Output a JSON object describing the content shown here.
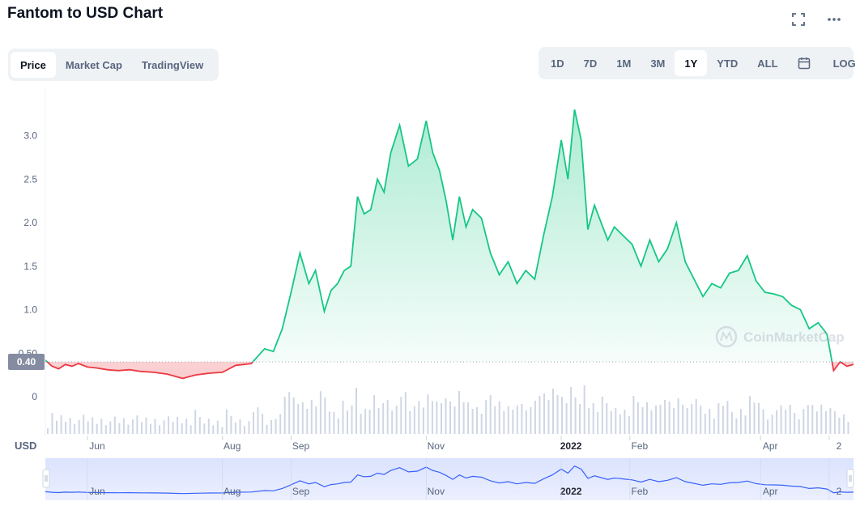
{
  "title": "Fantom to USD Chart",
  "icons": {
    "fullscreen": "fullscreen-icon",
    "more": "more-icon",
    "calendar": "calendar-icon"
  },
  "tabs": [
    {
      "label": "Price",
      "active": true
    },
    {
      "label": "Market Cap",
      "active": false
    },
    {
      "label": "TradingView",
      "active": false
    }
  ],
  "ranges": [
    {
      "label": "1D",
      "active": false
    },
    {
      "label": "7D",
      "active": false
    },
    {
      "label": "1M",
      "active": false
    },
    {
      "label": "3M",
      "active": false
    },
    {
      "label": "1Y",
      "active": true
    },
    {
      "label": "YTD",
      "active": false
    },
    {
      "label": "ALL",
      "active": false
    }
  ],
  "log_label": "LOG",
  "current_price_label": "0.40",
  "currency_label": "USD",
  "watermark": "CoinMarketCap",
  "colors": {
    "up": "#16c784",
    "down": "#ea3943",
    "navigator": "#3861fb",
    "badge": "#858ca2"
  },
  "chart_data": {
    "type": "line",
    "title": "",
    "xlabel": "",
    "ylabel": "",
    "ylim": [
      0,
      3.3
    ],
    "y_ticks": [
      "0",
      "0.50",
      "1.0",
      "1.5",
      "2.0",
      "2.5",
      "3.0"
    ],
    "x_tick_labels": [
      "Jun",
      "Aug",
      "Sep",
      "Nov",
      "2022",
      "Feb",
      "Apr",
      "2"
    ],
    "reference_price": 0.4,
    "grid": false,
    "series": [
      {
        "name": "",
        "x": [
          "2021-05-13",
          "2021-05-16",
          "2021-05-19",
          "2021-05-22",
          "2021-05-25",
          "2021-05-28",
          "2021-06-01",
          "2021-06-05",
          "2021-06-10",
          "2021-06-15",
          "2021-06-20",
          "2021-06-25",
          "2021-07-01",
          "2021-07-07",
          "2021-07-14",
          "2021-07-20",
          "2021-07-26",
          "2021-08-01",
          "2021-08-07",
          "2021-08-14",
          "2021-08-20",
          "2021-08-24",
          "2021-08-28",
          "2021-09-01",
          "2021-09-05",
          "2021-09-09",
          "2021-09-12",
          "2021-09-16",
          "2021-09-19",
          "2021-09-22",
          "2021-09-25",
          "2021-09-28",
          "2021-10-01",
          "2021-10-04",
          "2021-10-07",
          "2021-10-10",
          "2021-10-13",
          "2021-10-16",
          "2021-10-20",
          "2021-10-24",
          "2021-10-28",
          "2021-11-01",
          "2021-11-04",
          "2021-11-07",
          "2021-11-10",
          "2021-11-13",
          "2021-11-16",
          "2021-11-19",
          "2021-11-22",
          "2021-11-26",
          "2021-11-30",
          "2021-12-04",
          "2021-12-08",
          "2021-12-12",
          "2021-12-16",
          "2021-12-20",
          "2021-12-24",
          "2021-12-28",
          "2022-01-01",
          "2022-01-04",
          "2022-01-07",
          "2022-01-10",
          "2022-01-13",
          "2022-01-16",
          "2022-01-19",
          "2022-01-22",
          "2022-01-25",
          "2022-01-29",
          "2022-02-02",
          "2022-02-06",
          "2022-02-10",
          "2022-02-14",
          "2022-02-18",
          "2022-02-22",
          "2022-02-26",
          "2022-03-02",
          "2022-03-06",
          "2022-03-10",
          "2022-03-14",
          "2022-03-18",
          "2022-03-22",
          "2022-03-26",
          "2022-03-30",
          "2022-04-03",
          "2022-04-07",
          "2022-04-11",
          "2022-04-15",
          "2022-04-19",
          "2022-04-23",
          "2022-04-27",
          "2022-05-01",
          "2022-05-04",
          "2022-05-07",
          "2022-05-10",
          "2022-05-13"
        ],
        "values": [
          0.42,
          0.35,
          0.32,
          0.37,
          0.35,
          0.38,
          0.34,
          0.33,
          0.31,
          0.3,
          0.31,
          0.29,
          0.28,
          0.26,
          0.21,
          0.25,
          0.27,
          0.28,
          0.36,
          0.38,
          0.55,
          0.52,
          0.78,
          1.2,
          1.65,
          1.3,
          1.45,
          0.98,
          1.22,
          1.3,
          1.45,
          1.5,
          2.3,
          2.1,
          2.15,
          2.5,
          2.35,
          2.8,
          3.12,
          2.65,
          2.73,
          3.17,
          2.8,
          2.6,
          2.25,
          1.8,
          2.3,
          1.95,
          2.15,
          2.05,
          1.65,
          1.4,
          1.55,
          1.3,
          1.45,
          1.35,
          1.85,
          2.3,
          2.95,
          2.5,
          3.3,
          2.95,
          1.92,
          2.2,
          2.0,
          1.8,
          1.95,
          1.85,
          1.75,
          1.5,
          1.8,
          1.55,
          1.7,
          2.0,
          1.55,
          1.35,
          1.15,
          1.3,
          1.25,
          1.42,
          1.45,
          1.62,
          1.33,
          1.2,
          1.18,
          1.15,
          1.05,
          1.0,
          0.78,
          0.85,
          0.72,
          0.3,
          0.4,
          0.35,
          0.37
        ]
      }
    ],
    "volume_note": "volume bars shown",
    "navigator_x_tick_labels": [
      "Jun",
      "Aug",
      "Sep",
      "Nov",
      "2022",
      "Feb",
      "Apr",
      "2"
    ]
  }
}
